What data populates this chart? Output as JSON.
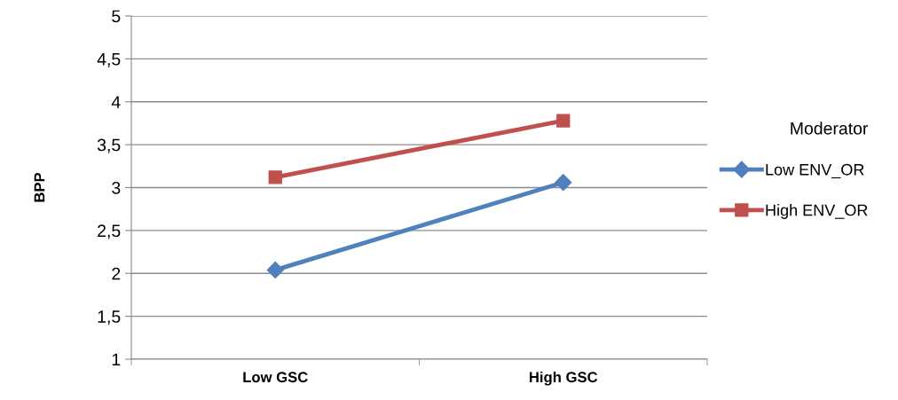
{
  "chart_data": {
    "type": "line",
    "ylabel": "BPP",
    "legend_title": "Moderator",
    "categories": [
      "Low GSC",
      "High GSC"
    ],
    "series": [
      {
        "name": "Low ENV_OR",
        "color": "#4f81bd",
        "marker": "diamond",
        "values": [
          2.04,
          3.06
        ]
      },
      {
        "name": "High ENV_OR",
        "color": "#c0504d",
        "marker": "square",
        "values": [
          3.12,
          3.78
        ]
      }
    ],
    "ylim": [
      1,
      5
    ],
    "yticks": [
      1,
      {
        "value": 1.5,
        "label": "1,5"
      },
      2,
      {
        "value": 2.5,
        "label": "2,5"
      },
      3,
      {
        "value": 3.5,
        "label": "3,5"
      },
      4,
      {
        "value": 4.5,
        "label": "4,5"
      },
      5
    ],
    "grid": "y",
    "legend": "right",
    "line_style": "solid"
  }
}
